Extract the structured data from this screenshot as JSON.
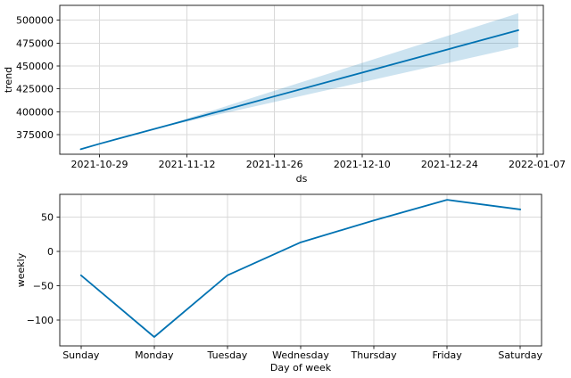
{
  "figure": {
    "background": "#ffffff",
    "line_color": "#0072B2",
    "band_fill_color": "#0072B2",
    "band_opacity": 0.2,
    "grid_color": "#d9d9d9",
    "spine_color": "#262626",
    "tick_color": "#262626",
    "text_color": "#000000"
  },
  "chart_data": [
    {
      "type": "line",
      "name": "trend-component",
      "title": "",
      "xlabel": "ds",
      "ylabel": "trend",
      "grid": true,
      "legend": false,
      "x_unit": "days since 2021-10-26",
      "xlim": [
        -3.35,
        74.0
      ],
      "ylim": [
        353500,
        516300
      ],
      "xticks": [
        {
          "v": 3,
          "label": "2021-10-29"
        },
        {
          "v": 17,
          "label": "2021-11-12"
        },
        {
          "v": 31,
          "label": "2021-11-26"
        },
        {
          "v": 45,
          "label": "2021-12-10"
        },
        {
          "v": 59,
          "label": "2021-12-24"
        },
        {
          "v": 73,
          "label": "2022-01-07"
        }
      ],
      "yticks": [
        {
          "v": 375000,
          "label": "375000"
        },
        {
          "v": 400000,
          "label": "400000"
        },
        {
          "v": 425000,
          "label": "425000"
        },
        {
          "v": 450000,
          "label": "450000"
        },
        {
          "v": 475000,
          "label": "475000"
        },
        {
          "v": 500000,
          "label": "500000"
        }
      ],
      "series": [
        {
          "name": "trend",
          "dates": [
            "2021-10-26",
            "2021-10-29",
            "2021-11-12",
            "2021-11-26",
            "2021-12-10",
            "2021-12-24",
            "2022-01-04"
          ],
          "x": [
            0,
            3,
            17,
            31,
            45,
            59,
            70
          ],
          "y": [
            359000,
            364900,
            390800,
            416800,
            442700,
            468700,
            489100
          ]
        }
      ],
      "uncertainty_band": {
        "x": [
          12,
          31,
          45,
          59,
          70
        ],
        "lower": [
          381500,
          410700,
          432200,
          453700,
          470600
        ],
        "upper": [
          381500,
          422900,
          453300,
          483700,
          507700
        ]
      }
    },
    {
      "type": "line",
      "name": "weekly-component",
      "title": "",
      "xlabel": "Day of week",
      "ylabel": "weekly",
      "grid": true,
      "legend": false,
      "xlim": [
        -0.29,
        6.29
      ],
      "ylim": [
        -138,
        83
      ],
      "xticks": [
        {
          "v": 0,
          "label": "Sunday"
        },
        {
          "v": 1,
          "label": "Monday"
        },
        {
          "v": 2,
          "label": "Tuesday"
        },
        {
          "v": 3,
          "label": "Wednesday"
        },
        {
          "v": 4,
          "label": "Thursday"
        },
        {
          "v": 5,
          "label": "Friday"
        },
        {
          "v": 6,
          "label": "Saturday"
        }
      ],
      "yticks": [
        {
          "v": -100,
          "label": "−100"
        },
        {
          "v": -50,
          "label": "−50"
        },
        {
          "v": 0,
          "label": "0"
        },
        {
          "v": 50,
          "label": "50"
        }
      ],
      "series": [
        {
          "name": "weekly",
          "categories": [
            "Sunday",
            "Monday",
            "Tuesday",
            "Wednesday",
            "Thursday",
            "Friday",
            "Saturday"
          ],
          "x": [
            0,
            1,
            2,
            3,
            4,
            5,
            6
          ],
          "y": [
            -35,
            -125,
            -35,
            13,
            45,
            75,
            61
          ]
        }
      ]
    }
  ]
}
